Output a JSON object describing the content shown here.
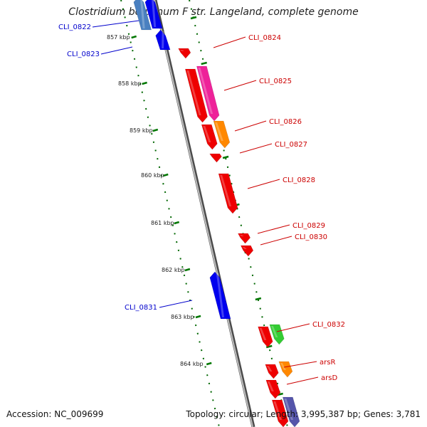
{
  "title": "Clostridium botulinum F str. Langeland, complete genome",
  "footer": {
    "accession": "Accession: NC_009699",
    "summary": "Topology: circular; Length: 3,995,387 bp; Genes: 3,781"
  },
  "colors": {
    "forward_label": "#cc0000",
    "reverse_label": "#0000cc",
    "backbone": "#888888",
    "ticks": "#007700"
  },
  "kbp_labels": [
    "857 kbp",
    "858 kbp",
    "859 kbp",
    "860 kbp",
    "861 kbp",
    "862 kbp",
    "863 kbp",
    "864 kbp"
  ],
  "gene_labels": [
    {
      "text": "CLI_0822",
      "strand": "reverse"
    },
    {
      "text": "CLI_0823",
      "strand": "reverse"
    },
    {
      "text": "CLI_0824",
      "strand": "forward"
    },
    {
      "text": "CLI_0825",
      "strand": "forward"
    },
    {
      "text": "CLI_0826",
      "strand": "forward"
    },
    {
      "text": "CLI_0827",
      "strand": "forward"
    },
    {
      "text": "CLI_0828",
      "strand": "forward"
    },
    {
      "text": "CLI_0829",
      "strand": "forward"
    },
    {
      "text": "CLI_0830",
      "strand": "forward"
    },
    {
      "text": "CLI_0831",
      "strand": "reverse"
    },
    {
      "text": "CLI_0832",
      "strand": "forward"
    },
    {
      "text": "arsR",
      "strand": "forward"
    },
    {
      "text": "arsD",
      "strand": "forward"
    }
  ]
}
